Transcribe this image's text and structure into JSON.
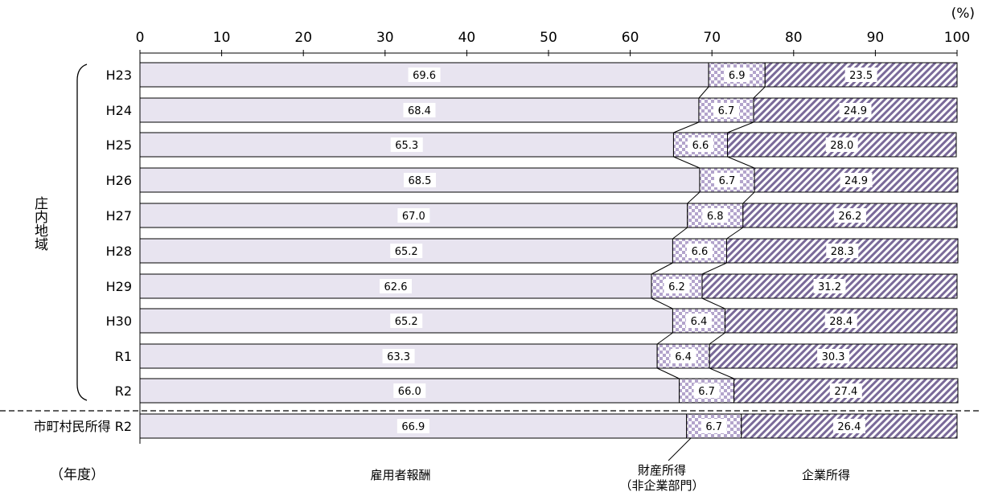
{
  "chart_data": {
    "type": "bar",
    "stacked": true,
    "orientation": "horizontal",
    "unit_label": "(%)",
    "xlim": [
      0,
      100
    ],
    "x_ticks": [
      "0",
      "10",
      "20",
      "30",
      "40",
      "50",
      "60",
      "70",
      "80",
      "90",
      "100"
    ],
    "categories": [
      "H23",
      "H24",
      "H25",
      "H26",
      "H27",
      "H28",
      "H29",
      "H30",
      "R1",
      "R2",
      "市町村民所得 R2"
    ],
    "group_label": "庄内地域",
    "year_axis_label": "（年度）",
    "series": [
      {
        "name": "雇用者報酬",
        "color": "#e8e4f0",
        "values": [
          69.6,
          68.4,
          65.3,
          68.5,
          67.0,
          65.2,
          62.6,
          65.2,
          63.3,
          66.0,
          66.9
        ],
        "labels": [
          "69.6",
          "68.4",
          "65.3",
          "68.5",
          "67.0",
          "65.2",
          "62.6",
          "65.2",
          "63.3",
          "66.0",
          "66.9"
        ]
      },
      {
        "name": "財産所得",
        "name_line2": "（非企業部門）",
        "color": "#b3a4cc",
        "values": [
          6.9,
          6.7,
          6.6,
          6.7,
          6.8,
          6.6,
          6.2,
          6.4,
          6.4,
          6.7,
          6.7
        ],
        "labels": [
          "6.9",
          "6.7",
          "6.6",
          "6.7",
          "6.8",
          "6.6",
          "6.2",
          "6.4",
          "6.4",
          "6.7",
          "6.7"
        ]
      },
      {
        "name": "企業所得",
        "color": "#7a6a99",
        "values": [
          23.5,
          24.9,
          28.0,
          24.9,
          26.2,
          28.3,
          31.2,
          28.4,
          30.3,
          27.4,
          26.4
        ],
        "labels": [
          "23.5",
          "24.9",
          "28.0",
          "24.9",
          "26.2",
          "28.3",
          "31.2",
          "28.4",
          "30.3",
          "27.4",
          "26.4"
        ]
      }
    ],
    "grid": false,
    "legend": "bottom, under each segment"
  }
}
